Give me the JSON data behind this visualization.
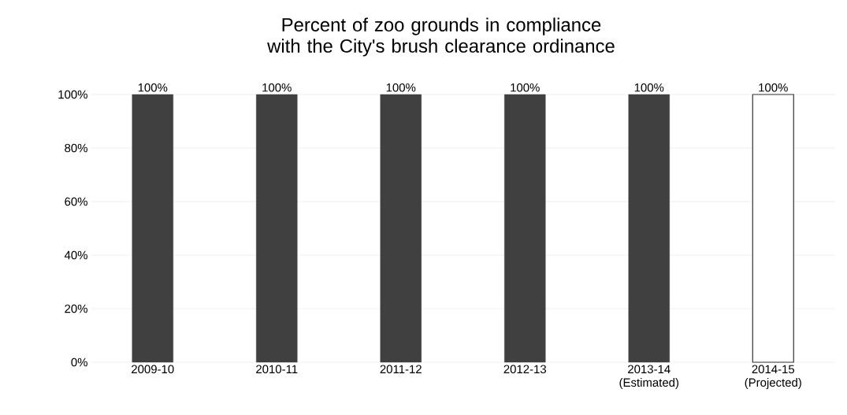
{
  "chart_data": {
    "type": "bar",
    "title": "Percent of zoo grounds in compliance with the City's brush clearance ordinance",
    "categories": [
      "2009-10",
      "2010-11",
      "2011-12",
      "2012-13",
      "2013-14 (Estimated)",
      "2014-15 (Projected)"
    ],
    "values": [
      100,
      100,
      100,
      100,
      100,
      100
    ],
    "colors": [
      "#404040",
      "#404040",
      "#404040",
      "#404040",
      "#404040",
      "#ffffff"
    ],
    "value_labels": [
      "100%",
      "100%",
      "100%",
      "100%",
      "100%",
      "100%"
    ],
    "ylim": [
      0,
      100
    ],
    "yticks": [
      {
        "value": 0,
        "label": "0%"
      },
      {
        "value": 20,
        "label": "20%"
      },
      {
        "value": 40,
        "label": "40%"
      },
      {
        "value": 60,
        "label": "60%"
      },
      {
        "value": 80,
        "label": "80%"
      },
      {
        "value": 100,
        "label": "100%"
      }
    ],
    "grid": "y"
  }
}
